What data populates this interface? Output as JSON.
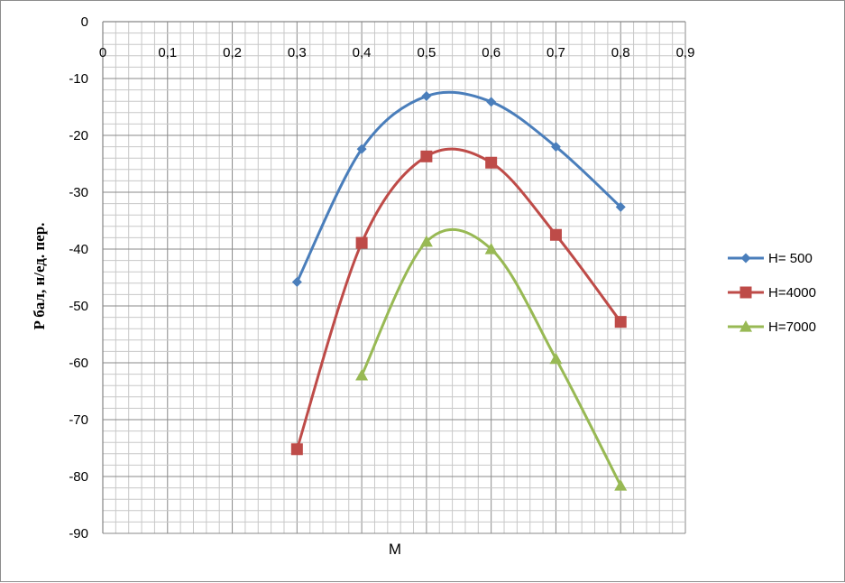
{
  "chart_data": {
    "type": "line",
    "title": "",
    "xlabel": "M",
    "ylabel": "P бал, н/ед. пер.",
    "xlim": [
      0,
      0.9
    ],
    "ylim": [
      -90,
      0
    ],
    "x_ticks": [
      "0",
      "0,1",
      "0,2",
      "0,3",
      "0,4",
      "0,5",
      "0,6",
      "0,7",
      "0,8",
      "0,9"
    ],
    "y_ticks": [
      "0",
      "-10",
      "-20",
      "-30",
      "-40",
      "-50",
      "-60",
      "-70",
      "-80",
      "-90"
    ],
    "grid": true,
    "smooth": true,
    "legend_position": "right",
    "series": [
      {
        "name": "H= 500",
        "color": "#4a7ebb",
        "marker": "diamond",
        "x": [
          0.3,
          0.4,
          0.5,
          0.6,
          0.7,
          0.8
        ],
        "y": [
          -45.8,
          -22.4,
          -13.1,
          -14.1,
          -22.0,
          -32.6
        ]
      },
      {
        "name": "H=4000",
        "color": "#be4b48",
        "marker": "square",
        "x": [
          0.3,
          0.4,
          0.5,
          0.6,
          0.7,
          0.8
        ],
        "y": [
          -75.2,
          -38.9,
          -23.7,
          -24.8,
          -37.5,
          -52.8
        ]
      },
      {
        "name": "H=7000",
        "color": "#98b954",
        "marker": "triangle",
        "x": [
          0.4,
          0.5,
          0.6,
          0.7,
          0.8
        ],
        "y": [
          -62.2,
          -38.7,
          -40.0,
          -59.3,
          -81.6
        ]
      }
    ]
  }
}
